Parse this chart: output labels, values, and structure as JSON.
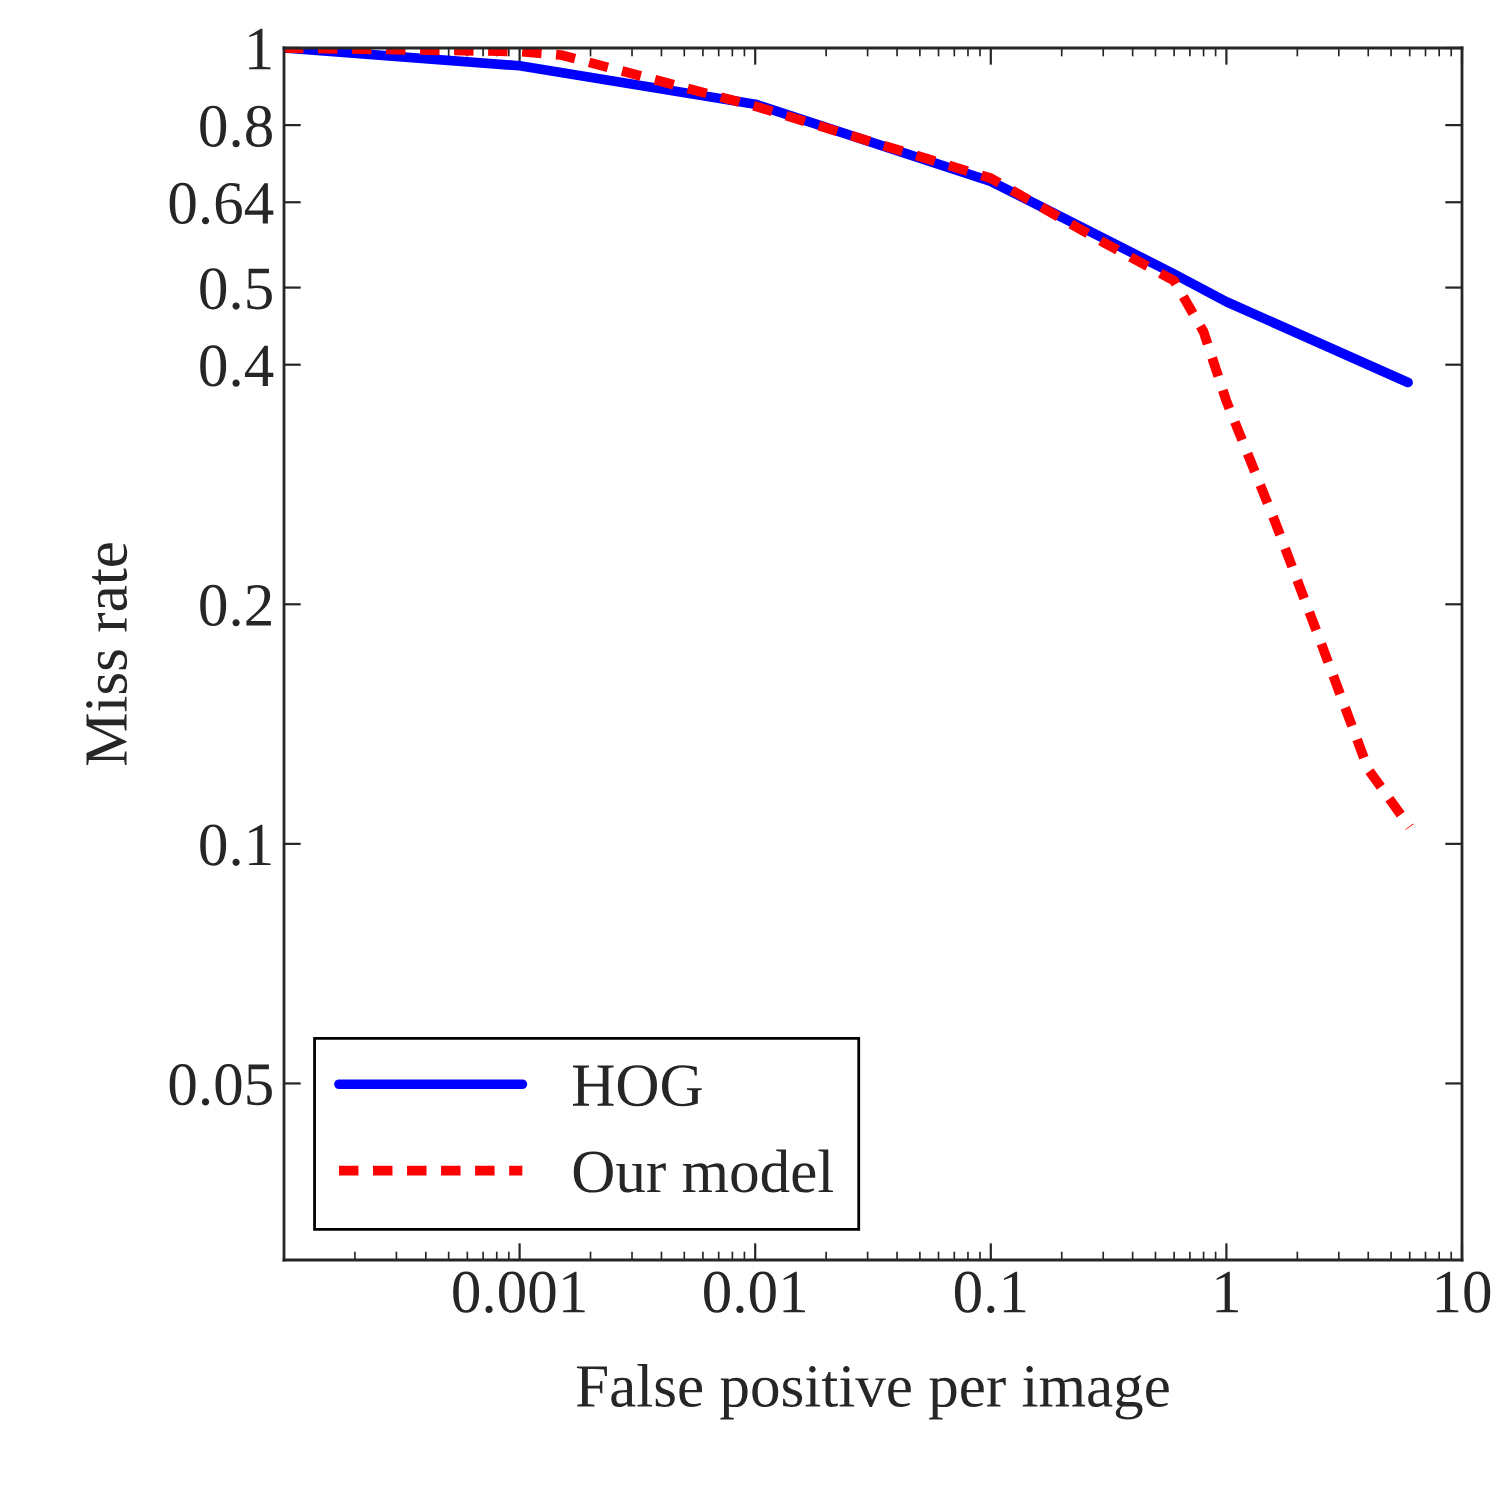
{
  "chart_data": {
    "type": "line",
    "xlabel": "False positive per image",
    "ylabel": "Miss rate",
    "log": "xy",
    "xlim": [
      0.0001,
      10
    ],
    "ylim": [
      0.03,
      1
    ],
    "xticks": [
      0.001,
      0.01,
      0.1,
      1,
      10
    ],
    "yticks": [
      0.05,
      0.1,
      0.2,
      0.4,
      0.5,
      0.64,
      0.8,
      1
    ],
    "grid": false,
    "legend": "bottom left",
    "series": [
      {
        "name": "HOG",
        "color": "#0000ff",
        "line_style": "solid",
        "x": [
          0.0001,
          0.001,
          0.01,
          0.1,
          0.6,
          1,
          5.9
        ],
        "values": [
          1,
          0.95,
          0.85,
          0.68,
          0.52,
          0.48,
          0.38
        ]
      },
      {
        "name": "Our model",
        "color": "#ff0000",
        "line_style": "dashed",
        "x": [
          0.0001,
          0.001,
          0.0015,
          0.01,
          0.1,
          0.3,
          0.6,
          0.8,
          1,
          1.6,
          2.5,
          4,
          6
        ],
        "values": [
          1,
          0.99,
          0.98,
          0.845,
          0.686,
          0.57,
          0.51,
          0.44,
          0.36,
          0.255,
          0.18,
          0.124,
          0.105
        ]
      }
    ]
  }
}
